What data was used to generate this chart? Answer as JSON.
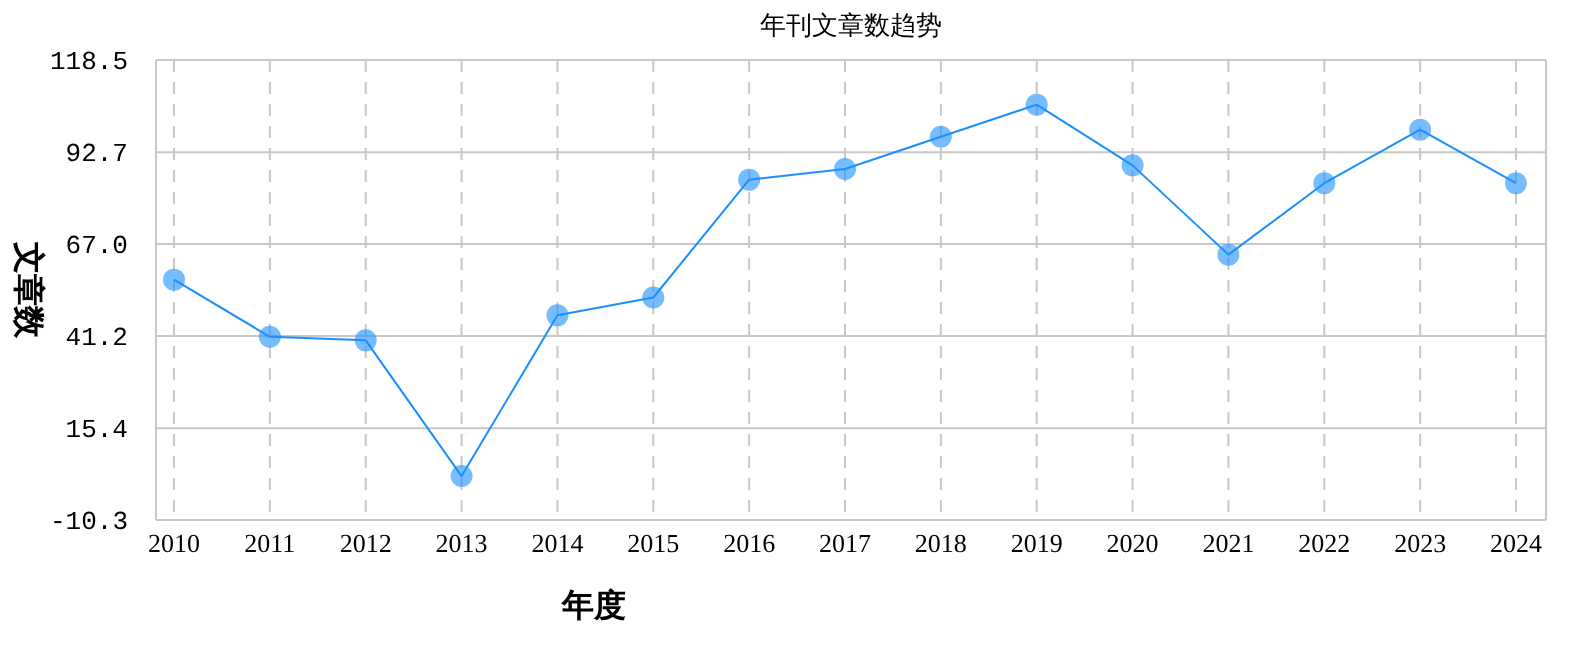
{
  "chart_data": {
    "type": "line",
    "title": "年刊文章数趋势",
    "xlabel": "年度",
    "ylabel": "文章数",
    "categories": [
      "2010",
      "2011",
      "2012",
      "2013",
      "2014",
      "2015",
      "2016",
      "2017",
      "2018",
      "2019",
      "2020",
      "2021",
      "2022",
      "2023",
      "2024"
    ],
    "series": [
      {
        "color": "#1a8fff",
        "values": [
          57,
          41,
          40,
          2,
          47,
          52,
          85,
          88,
          97,
          106,
          89,
          64,
          84,
          99,
          84
        ]
      }
    ],
    "ylim": [
      -10.3,
      118.5
    ],
    "yticks": [
      {
        "value": -10.3,
        "label": "-10.3"
      },
      {
        "value": 15.4,
        "label": "15.4"
      },
      {
        "value": 41.2,
        "label": "41.2"
      },
      {
        "value": 67,
        "label": "67.0"
      },
      {
        "value": 92.7,
        "label": "92.7"
      },
      {
        "value": 118.5,
        "label": "118.5"
      }
    ],
    "grid": true,
    "marker": "circle",
    "line_style": "solid"
  }
}
